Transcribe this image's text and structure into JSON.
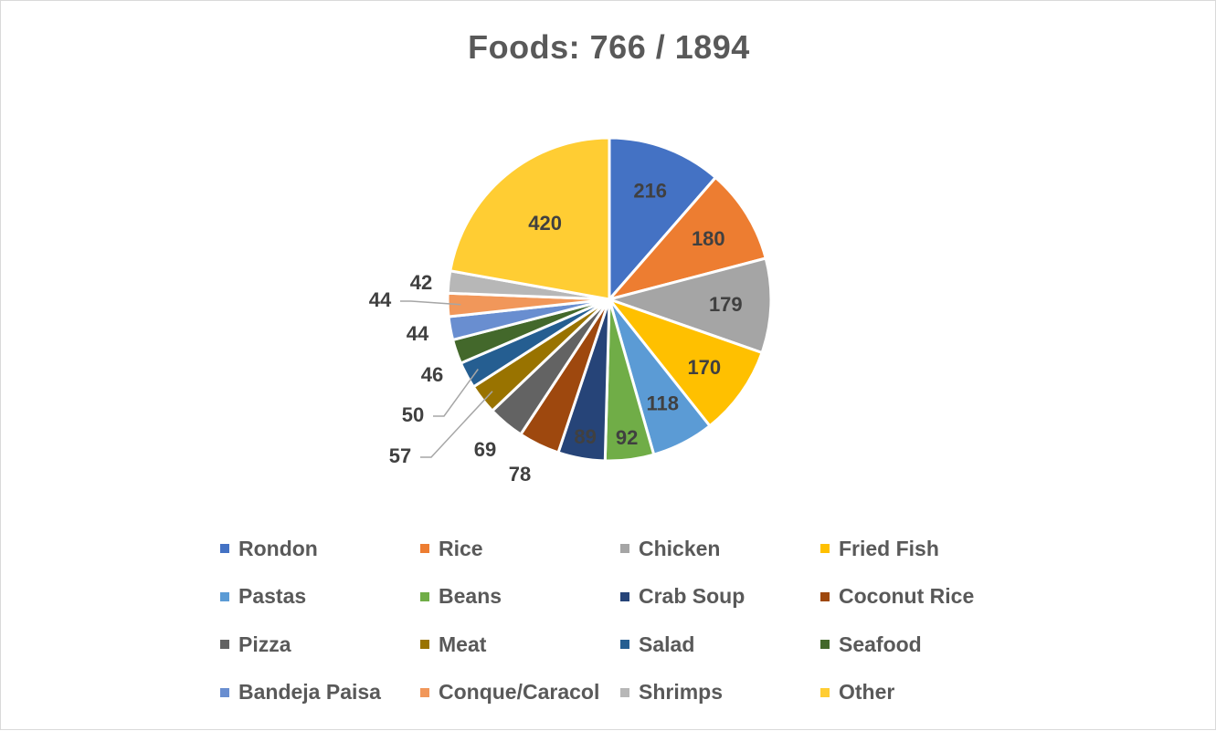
{
  "chart_data": {
    "type": "pie",
    "title": "Foods: 766 / 1894",
    "categories": [
      "Rondon",
      "Rice",
      "Chicken",
      "Fried Fish",
      "Pastas",
      "Beans",
      "Crab Soup",
      "Coconut Rice",
      "Pizza",
      "Meat",
      "Salad",
      "Seafood",
      "Bandeja Paisa",
      "Conque/Caracol",
      "Shrimps",
      "Other"
    ],
    "values": [
      216,
      180,
      179,
      170,
      118,
      92,
      89,
      78,
      69,
      57,
      50,
      46,
      44,
      44,
      42,
      420
    ],
    "data_labels": [
      "216",
      "180",
      "179",
      "170",
      "118",
      "92",
      "89",
      "78",
      "69",
      "57",
      "50",
      "46",
      "44",
      "44",
      "42",
      "420"
    ],
    "colors": [
      "#4472C4",
      "#ED7D31",
      "#A5A5A5",
      "#FFC000",
      "#5B9BD5",
      "#70AD47",
      "#264478",
      "#9E480E",
      "#636363",
      "#997300",
      "#255E91",
      "#43682B",
      "#698ED0",
      "#F1975A",
      "#B7B7B7",
      "#FFCD33"
    ],
    "legend_position": "bottom",
    "legend_columns": 4
  }
}
